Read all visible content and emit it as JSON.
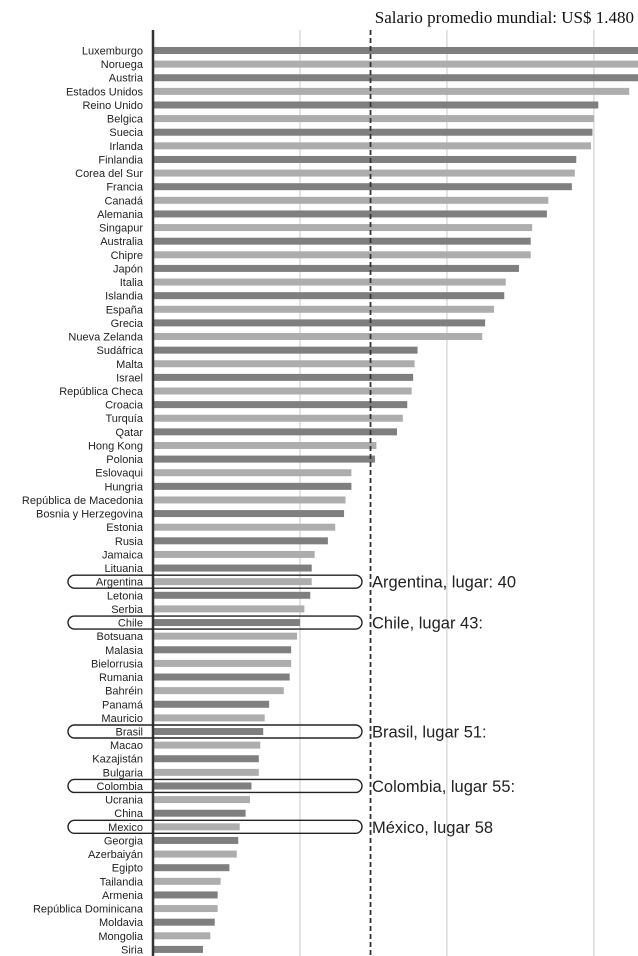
{
  "chart_data": {
    "type": "bar",
    "orientation": "horizontal",
    "title": "Salario promedio mundial: US$ 1.480",
    "xlabel": "",
    "ylabel": "",
    "grid": true,
    "reference_line": {
      "value": 1480,
      "style": "dashed"
    },
    "xlim": [
      0,
      3300
    ],
    "categories": [
      "Luxemburgo",
      "Noruega",
      "Austria",
      "Estados Unidos",
      "Reino Unido",
      "Belgica",
      "Suecia",
      "Irlanda",
      "Finlandia",
      "Corea del Sur",
      "Francia",
      "Canadá",
      "Alemania",
      "Singapur",
      "Australia",
      "Chipre",
      "Japón",
      "Italia",
      "Islandia",
      "España",
      "Grecia",
      "Nueva Zelanda",
      "Sudáfrica",
      "Malta",
      "Israel",
      "República Checa",
      "Croacia",
      "Turquía",
      "Qatar",
      "Hong Kong",
      "Polonia",
      "Eslovaqui",
      "Hungria",
      "República de Macedonia",
      "Bosnia y Herzegovina",
      "Estonia",
      "Rusia",
      "Jamaica",
      "Lituania",
      "Argentina",
      "Letonia",
      "Serbia",
      "Chile",
      "Botsuana",
      "Malasia",
      "Bielorrusia",
      "Rumania",
      "Bahréin",
      "Panamá",
      "Mauricio",
      "Brasil",
      "Macao",
      "Kazajistán",
      "Bulgaria",
      "Colombia",
      "Ucrania",
      "China",
      "Mexico",
      "Georgia",
      "Azerbaiyán",
      "Egipto",
      "Tailandia",
      "Armenia",
      "República Dominicana",
      "Moldavia",
      "Mongolia",
      "Siria"
    ],
    "values": [
      3300,
      3300,
      3300,
      3240,
      3030,
      3000,
      2990,
      2980,
      2880,
      2870,
      2850,
      2690,
      2680,
      2580,
      2570,
      2570,
      2490,
      2400,
      2390,
      2320,
      2260,
      2240,
      1800,
      1780,
      1770,
      1760,
      1730,
      1700,
      1660,
      1520,
      1510,
      1350,
      1350,
      1310,
      1300,
      1240,
      1190,
      1100,
      1080,
      1080,
      1070,
      1030,
      1000,
      980,
      940,
      940,
      930,
      890,
      790,
      760,
      750,
      730,
      720,
      720,
      670,
      660,
      630,
      590,
      580,
      570,
      520,
      460,
      440,
      440,
      420,
      390,
      340
    ],
    "colors": {
      "dark": "#7f7f7f",
      "light": "#adadad"
    },
    "highlighted": [
      {
        "category": "Argentina",
        "annotation": "Argentina, lugar: 40"
      },
      {
        "category": "Chile",
        "annotation": "Chile, lugar 43:"
      },
      {
        "category": "Brasil",
        "annotation": "Brasil, lugar 51:"
      },
      {
        "category": "Colombia",
        "annotation": "Colombia, lugar 55:"
      },
      {
        "category": "Mexico",
        "annotation": "México, lugar 58"
      }
    ]
  }
}
